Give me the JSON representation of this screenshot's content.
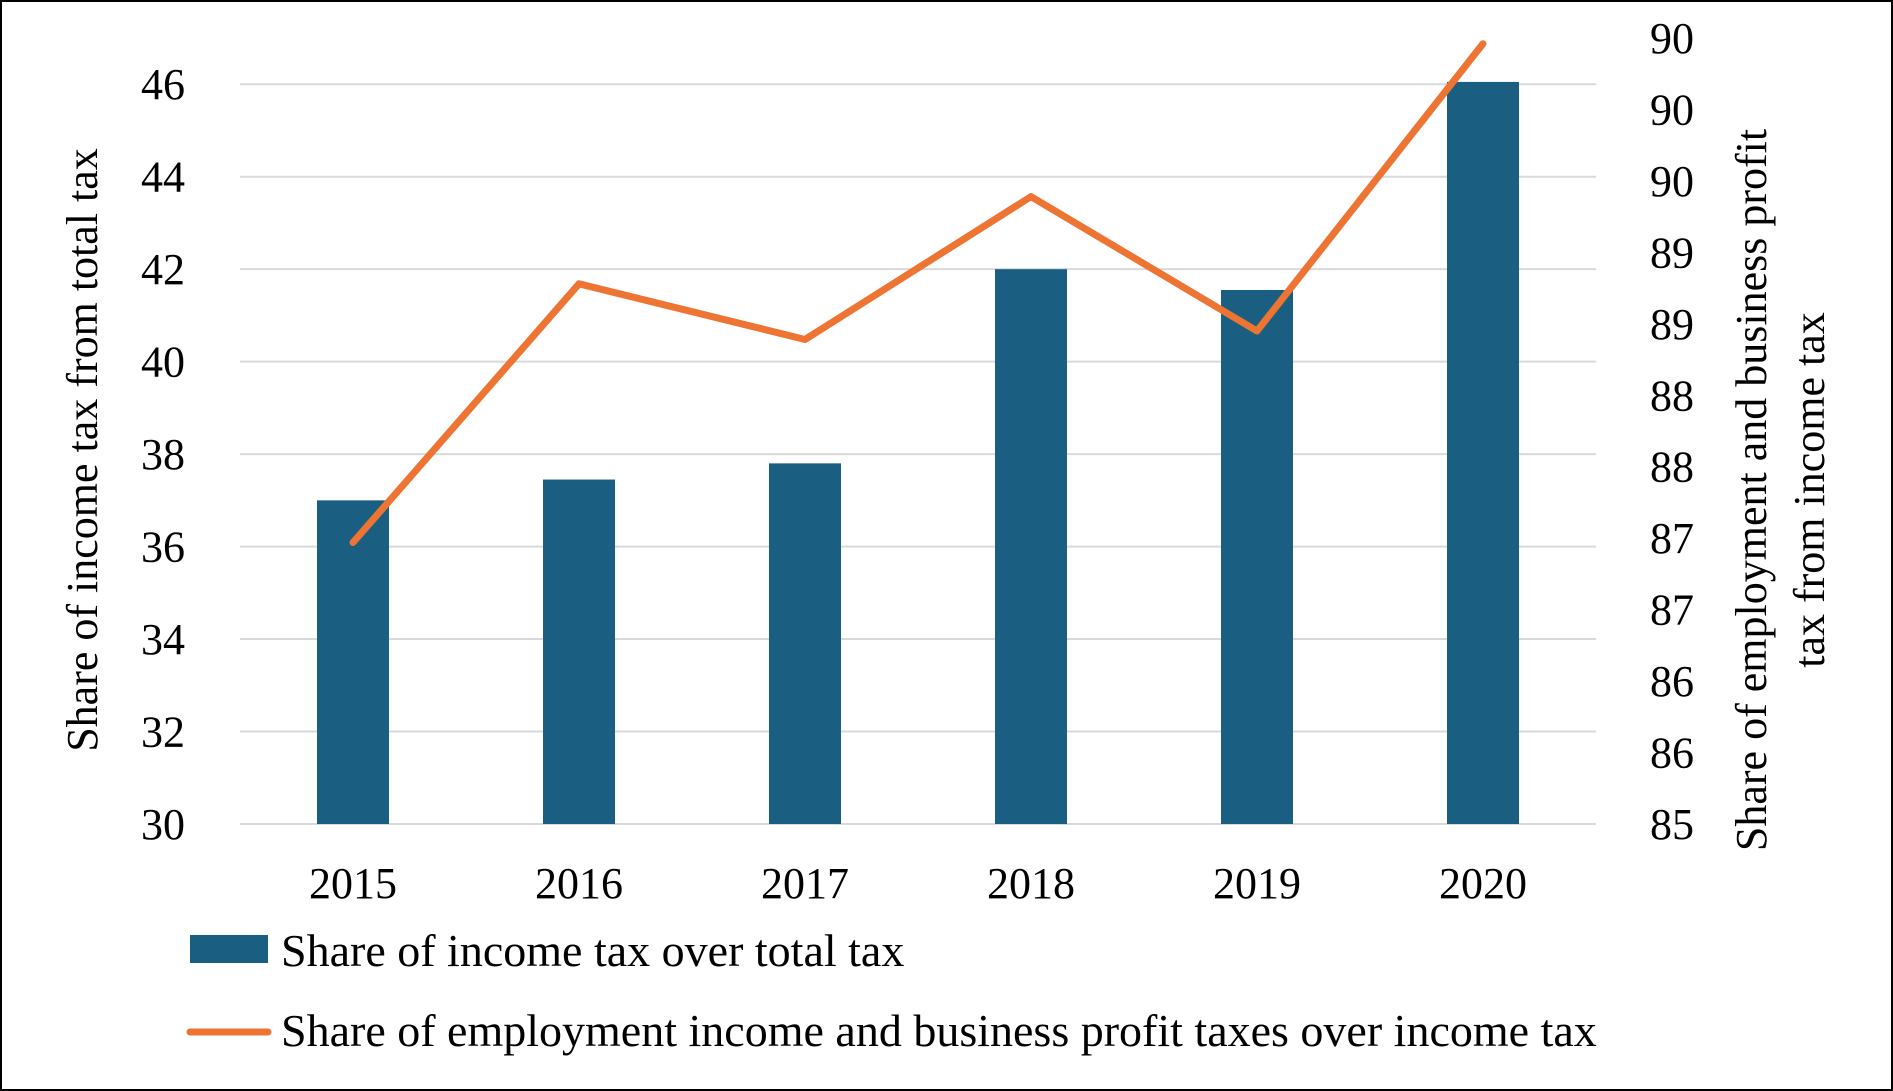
{
  "chart_data": {
    "type": "bar",
    "categories": [
      "2015",
      "2016",
      "2017",
      "2018",
      "2019",
      "2020"
    ],
    "series": [
      {
        "name": "Share of income tax over total tax",
        "type": "bar",
        "axis": "left",
        "values": [
          37.0,
          37.45,
          37.8,
          42.0,
          41.55,
          46.05
        ]
      },
      {
        "name": "Share of employment income and business profit taxes over income tax",
        "type": "line",
        "axis": "right",
        "values": [
          86.97,
          88.78,
          88.39,
          89.39,
          88.45,
          90.46
        ]
      }
    ],
    "y_left": {
      "label": "Share of income tax  from total tax",
      "ylim": [
        30,
        47
      ],
      "ticks": [
        30,
        32,
        34,
        36,
        38,
        40,
        42,
        44,
        46
      ]
    },
    "y_right": {
      "label_lines": [
        "Share of employment and business profit",
        "tax from income tax"
      ],
      "ylim": [
        85,
        90.5
      ],
      "ticks": [
        85,
        85.5,
        86,
        86.5,
        87,
        87.5,
        88,
        88.5,
        89,
        89.5,
        90,
        90.5
      ],
      "tick_labels": [
        "85",
        "86",
        "86",
        "87",
        "87",
        "88",
        "88",
        "89",
        "89",
        "90",
        "90",
        "90"
      ]
    },
    "legend": {
      "position": "bottom-left",
      "entries": [
        "Share of income tax over total tax",
        "Share of employment income and business profit taxes over income tax"
      ]
    },
    "grid": true,
    "colors": {
      "bar": "#1a5f81",
      "line": "#ed7433",
      "grid": "#d9d9d9"
    }
  }
}
